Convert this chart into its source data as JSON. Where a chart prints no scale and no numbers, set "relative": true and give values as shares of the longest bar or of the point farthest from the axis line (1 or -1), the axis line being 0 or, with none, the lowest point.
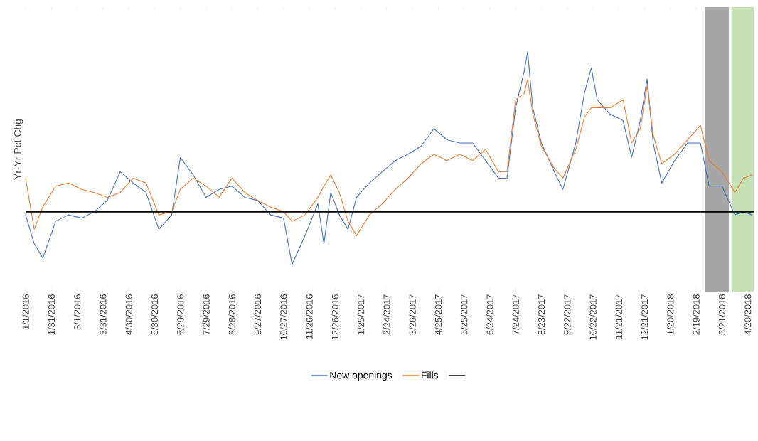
{
  "chart_data": {
    "type": "line",
    "relative": true,
    "ylabel": "Yr-Yr Pct Chg",
    "x": [
      "2016-01-01",
      "2016-01-11",
      "2016-01-21",
      "2016-02-05",
      "2016-02-20",
      "2016-03-06",
      "2016-03-21",
      "2016-04-05",
      "2016-04-20",
      "2016-05-05",
      "2016-05-20",
      "2016-06-04",
      "2016-06-19",
      "2016-06-29",
      "2016-07-14",
      "2016-07-29",
      "2016-08-13",
      "2016-08-28",
      "2016-09-12",
      "2016-09-27",
      "2016-10-12",
      "2016-10-27",
      "2016-11-06",
      "2016-11-21",
      "2016-12-06",
      "2016-12-13",
      "2016-12-21",
      "2016-12-31",
      "2017-01-10",
      "2017-01-20",
      "2017-02-04",
      "2017-02-19",
      "2017-03-06",
      "2017-03-21",
      "2017-04-05",
      "2017-04-20",
      "2017-05-05",
      "2017-05-20",
      "2017-06-04",
      "2017-06-19",
      "2017-07-04",
      "2017-07-14",
      "2017-07-24",
      "2017-08-03",
      "2017-08-07",
      "2017-08-13",
      "2017-08-23",
      "2017-09-07",
      "2017-09-17",
      "2017-10-02",
      "2017-10-12",
      "2017-10-20",
      "2017-10-27",
      "2017-11-11",
      "2017-11-26",
      "2017-12-06",
      "2017-12-16",
      "2017-12-24",
      "2017-12-31",
      "2018-01-10",
      "2018-01-25",
      "2018-02-09",
      "2018-02-24",
      "2018-03-06",
      "2018-03-21",
      "2018-04-05",
      "2018-04-15",
      "2018-04-25"
    ],
    "series": [
      {
        "name": "New openings",
        "color": "#4472c4",
        "values": [
          -0.02,
          -0.2,
          -0.29,
          -0.06,
          -0.02,
          -0.04,
          0.0,
          0.07,
          0.25,
          0.18,
          0.12,
          -0.11,
          -0.02,
          0.34,
          0.23,
          0.09,
          0.14,
          0.16,
          0.09,
          0.07,
          -0.02,
          -0.04,
          -0.33,
          -0.15,
          0.05,
          -0.2,
          0.12,
          -0.02,
          -0.11,
          0.09,
          0.18,
          0.25,
          0.32,
          0.36,
          0.41,
          0.52,
          0.45,
          0.43,
          0.43,
          0.32,
          0.21,
          0.21,
          0.65,
          0.88,
          1.0,
          0.65,
          0.43,
          0.25,
          0.14,
          0.43,
          0.74,
          0.9,
          0.7,
          0.61,
          0.57,
          0.34,
          0.57,
          0.83,
          0.43,
          0.18,
          0.32,
          0.43,
          0.43,
          0.16,
          0.16,
          -0.02,
          0.0,
          -0.02
        ]
      },
      {
        "name": "Fills",
        "color": "#ed7d31",
        "values": [
          0.21,
          -0.11,
          0.03,
          0.16,
          0.18,
          0.14,
          0.12,
          0.09,
          0.12,
          0.21,
          0.18,
          -0.02,
          0.0,
          0.14,
          0.21,
          0.16,
          0.09,
          0.21,
          0.12,
          0.07,
          0.03,
          0.0,
          -0.06,
          -0.02,
          0.09,
          0.16,
          0.23,
          0.12,
          -0.06,
          -0.15,
          -0.02,
          0.05,
          0.14,
          0.21,
          0.3,
          0.36,
          0.32,
          0.36,
          0.32,
          0.39,
          0.25,
          0.25,
          0.7,
          0.74,
          0.83,
          0.61,
          0.41,
          0.27,
          0.21,
          0.39,
          0.59,
          0.65,
          0.65,
          0.65,
          0.7,
          0.43,
          0.52,
          0.79,
          0.48,
          0.3,
          0.36,
          0.45,
          0.54,
          0.32,
          0.25,
          0.12,
          0.21,
          0.23
        ]
      }
    ],
    "xlim": [
      "2016-01-01",
      "2018-04-27"
    ],
    "xticks": [
      {
        "value": "2016-01-01",
        "label": "1/1/2016"
      },
      {
        "value": "2016-01-31",
        "label": "1/31/2016"
      },
      {
        "value": "2016-03-01",
        "label": "3/1/2016"
      },
      {
        "value": "2016-03-31",
        "label": "3/31/2016"
      },
      {
        "value": "2016-04-30",
        "label": "4/30/2016"
      },
      {
        "value": "2016-05-30",
        "label": "5/30/2016"
      },
      {
        "value": "2016-06-29",
        "label": "6/29/2016"
      },
      {
        "value": "2016-07-29",
        "label": "7/29/2016"
      },
      {
        "value": "2016-08-28",
        "label": "8/28/2016"
      },
      {
        "value": "2016-09-27",
        "label": "9/27/2016"
      },
      {
        "value": "2016-10-27",
        "label": "10/27/2016"
      },
      {
        "value": "2016-11-26",
        "label": "11/26/2016"
      },
      {
        "value": "2016-12-26",
        "label": "12/26/2016"
      },
      {
        "value": "2017-01-25",
        "label": "1/25/2017"
      },
      {
        "value": "2017-02-24",
        "label": "2/24/2017"
      },
      {
        "value": "2017-03-26",
        "label": "3/26/2017"
      },
      {
        "value": "2017-04-25",
        "label": "4/25/2017"
      },
      {
        "value": "2017-05-25",
        "label": "5/25/2017"
      },
      {
        "value": "2017-06-24",
        "label": "6/24/2017"
      },
      {
        "value": "2017-07-24",
        "label": "7/24/2017"
      },
      {
        "value": "2017-08-23",
        "label": "8/23/2017"
      },
      {
        "value": "2017-09-22",
        "label": "9/22/2017"
      },
      {
        "value": "2017-10-22",
        "label": "10/22/2017"
      },
      {
        "value": "2017-11-21",
        "label": "11/21/2017"
      },
      {
        "value": "2017-12-21",
        "label": "12/21/2017"
      },
      {
        "value": "2018-01-20",
        "label": "1/20/2018"
      },
      {
        "value": "2018-02-19",
        "label": "2/19/2018"
      },
      {
        "value": "2018-03-21",
        "label": "3/21/2018"
      },
      {
        "value": "2018-04-20",
        "label": "4/20/2018"
      }
    ],
    "ref_lines": [
      {
        "axis": "y",
        "value": 0,
        "color": "#000000"
      }
    ],
    "bands": [
      {
        "axis": "x",
        "from": "2018-03-01",
        "to": "2018-03-29",
        "color": "#a6a6a6"
      },
      {
        "axis": "x",
        "from": "2018-04-01",
        "to": "2018-04-27",
        "color": "#c5e0b4"
      }
    ],
    "legend": "bottom",
    "line_style": "solid"
  }
}
